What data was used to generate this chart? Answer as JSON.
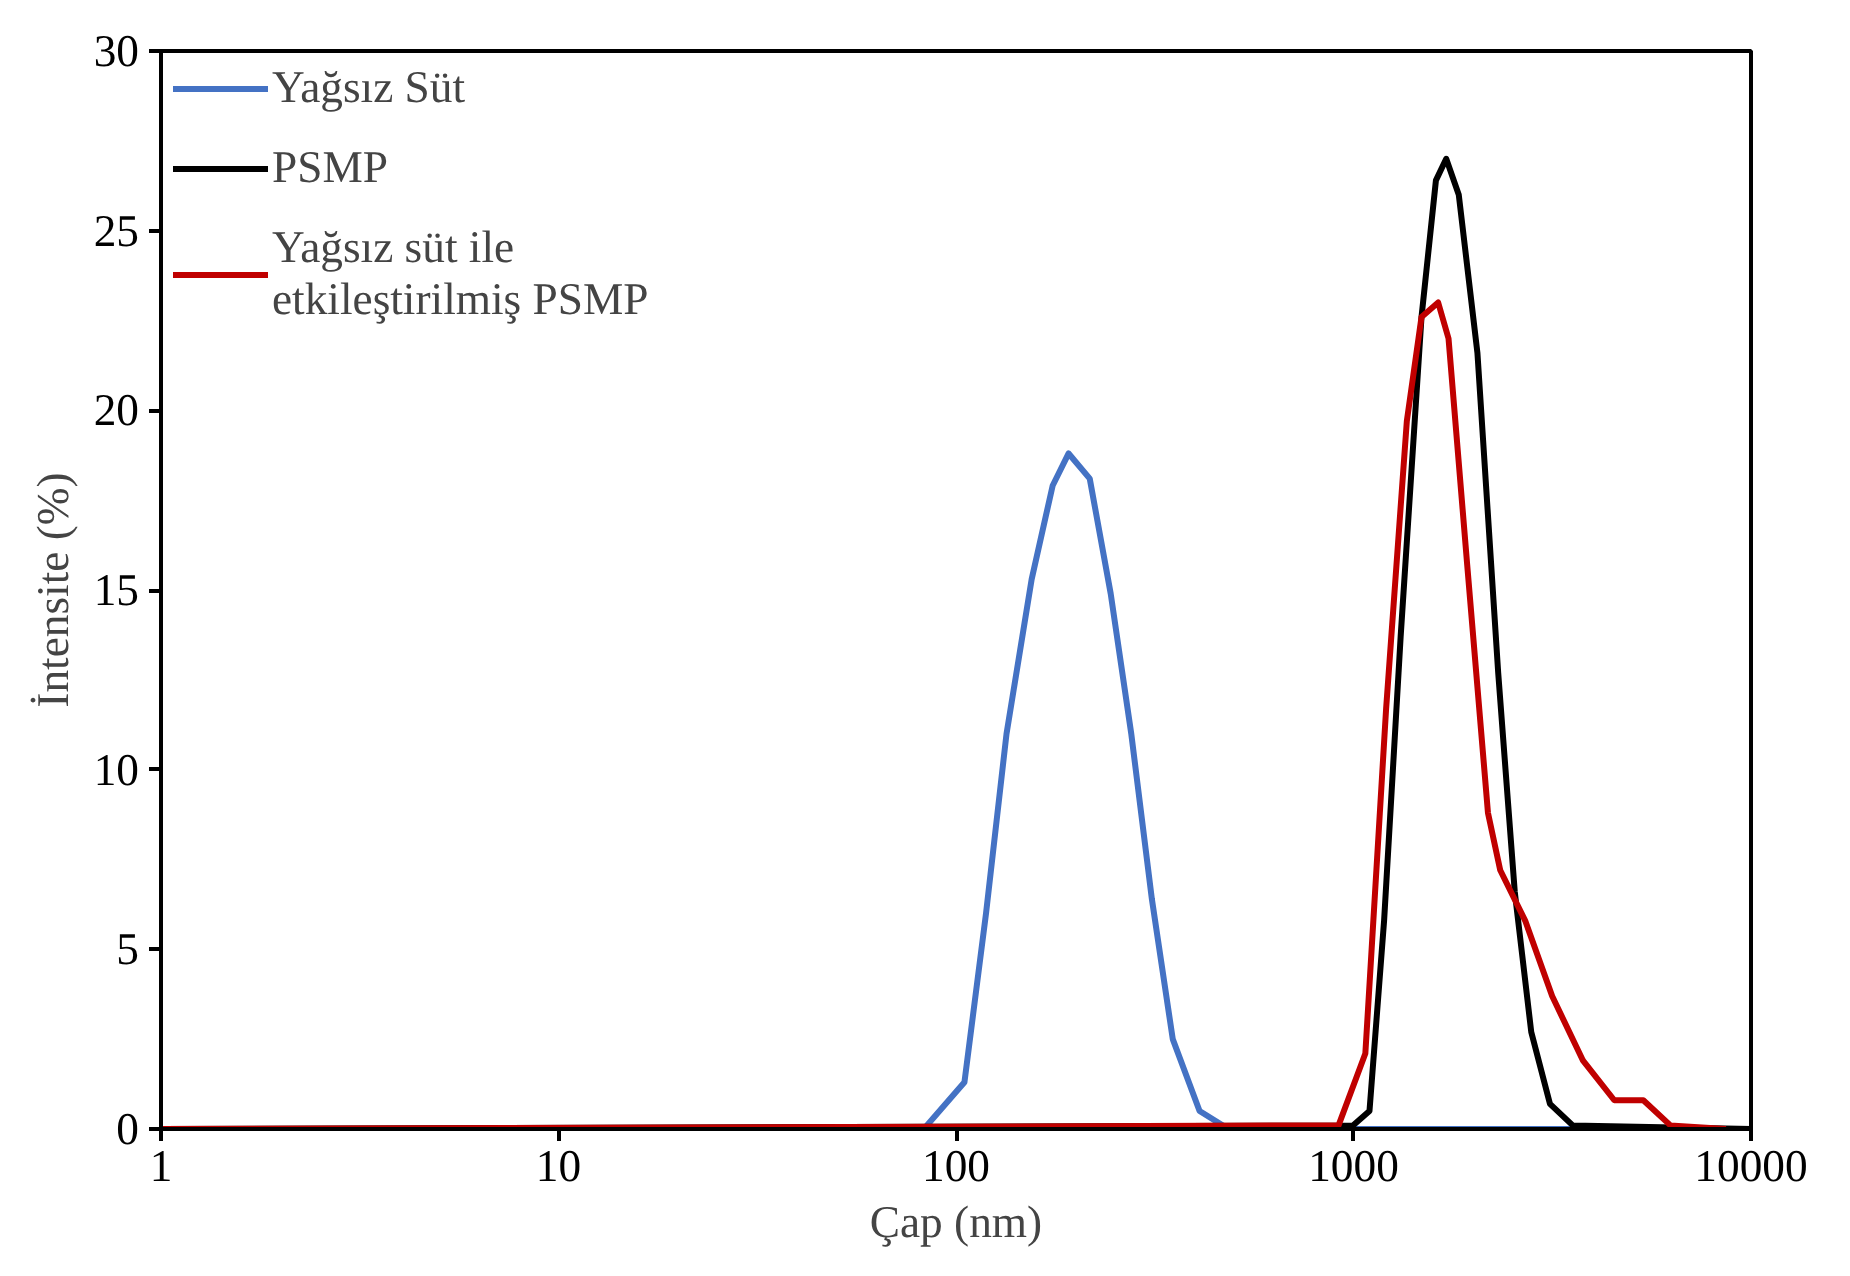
{
  "chart_data": {
    "type": "line",
    "xlabel": "Çap (nm)",
    "ylabel": "İntensite (%)",
    "log": "x",
    "xlim": [
      1,
      10000
    ],
    "xticks": [
      1,
      10,
      100,
      1000,
      10000
    ],
    "ylim": [
      0,
      30
    ],
    "yticks": [
      0,
      5,
      10,
      15,
      20,
      25,
      30
    ],
    "grid": false,
    "legend": "top left",
    "marker": "none",
    "line_style": "solid",
    "series": [
      {
        "name": "Yağsız Süt",
        "color": "#4472c4",
        "x": [
          1,
          83,
          105,
          119,
          134,
          155,
          175,
          192,
          217,
          245,
          276,
          311,
          351,
          410,
          485,
          3560
        ],
        "values": [
          0,
          0,
          1.3,
          6.0,
          11.0,
          15.3,
          17.9,
          18.8,
          18.1,
          14.9,
          11.0,
          6.4,
          2.5,
          0.5,
          0,
          0
        ]
      },
      {
        "name": "PSMP",
        "color": "#000000",
        "x": [
          1,
          997,
          1097,
          1194,
          1314,
          1483,
          1612,
          1711,
          1840,
          2050,
          2312,
          2545,
          2800,
          3120,
          3560,
          10000
        ],
        "values": [
          0,
          0.1,
          0.5,
          5.8,
          13.7,
          22.6,
          26.4,
          27.0,
          26.0,
          21.6,
          12.7,
          6.6,
          2.7,
          0.7,
          0.1,
          0
        ]
      },
      {
        "name": "Yağsız süt ile etkileştirilmiş PSMP",
        "color": "#c00000",
        "x": [
          1,
          917,
          1071,
          1208,
          1362,
          1483,
          1633,
          1734,
          1932,
          2179,
          2340,
          2703,
          3160,
          3780,
          4530,
          5360,
          6270,
          8650
        ],
        "values": [
          0,
          0.1,
          2.1,
          11.7,
          19.7,
          22.6,
          23.0,
          22.0,
          15.7,
          8.8,
          7.2,
          5.8,
          3.7,
          1.9,
          0.8,
          0.8,
          0.1,
          0
        ]
      }
    ]
  }
}
